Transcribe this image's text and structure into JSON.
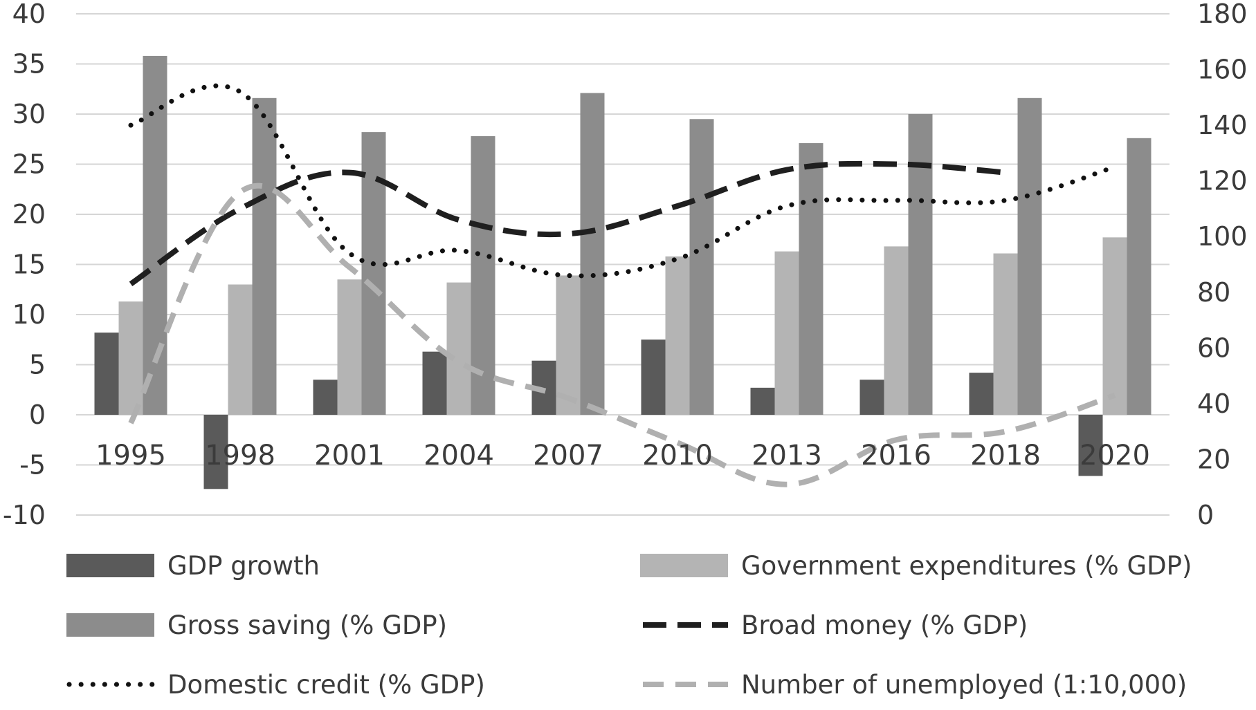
{
  "chart_data": {
    "type": "bar",
    "categories": [
      "1995",
      "1998",
      "2001",
      "2004",
      "2007",
      "2010",
      "2013",
      "2016",
      "2018",
      "2020"
    ],
    "y_left": {
      "ticks": [
        -10,
        -5,
        0,
        5,
        10,
        15,
        20,
        25,
        30,
        35,
        40
      ],
      "lim": [
        -10,
        40
      ]
    },
    "y_right": {
      "ticks": [
        0,
        20,
        40,
        60,
        80,
        100,
        120,
        140,
        160,
        180
      ],
      "lim": [
        0,
        180
      ]
    },
    "grid": true,
    "legend_position": "bottom",
    "series": [
      {
        "name": "GDP growth",
        "kind": "bar",
        "axis": "left",
        "color": "#5a5a5a",
        "values": [
          8.2,
          -7.4,
          3.5,
          6.3,
          5.4,
          7.5,
          2.7,
          3.5,
          4.2,
          -6.1
        ]
      },
      {
        "name": "Government expenditures (% GDP)",
        "kind": "bar",
        "axis": "left",
        "color": "#b4b4b4",
        "values": [
          11.3,
          13.0,
          13.5,
          13.2,
          13.9,
          15.8,
          16.3,
          16.8,
          16.1,
          17.7
        ]
      },
      {
        "name": "Gross saving (% GDP)",
        "kind": "bar",
        "axis": "left",
        "color": "#8c8c8c",
        "values": [
          35.8,
          31.6,
          28.2,
          27.8,
          32.1,
          29.5,
          27.1,
          30.0,
          31.6,
          27.6
        ]
      },
      {
        "name": "Broad money (% GDP)",
        "kind": "line",
        "style": "dashed",
        "axis": "right",
        "color": "#1f1f1f",
        "values": [
          83,
          110,
          123,
          106,
          101,
          111,
          124,
          126,
          123,
          null
        ]
      },
      {
        "name": "Domestic credit (% GDP)",
        "kind": "line",
        "style": "dotted",
        "axis": "right",
        "color": "#111111",
        "values": [
          140,
          152,
          94,
          95,
          86,
          92,
          111,
          113,
          113,
          125
        ]
      },
      {
        "name": "Number of unemployed (1:10,000)",
        "kind": "line",
        "style": "dashed",
        "axis": "right",
        "color": "#b0b0b0",
        "values": [
          33,
          116,
          89,
          55,
          42,
          26,
          11,
          27,
          30,
          43
        ]
      }
    ]
  }
}
